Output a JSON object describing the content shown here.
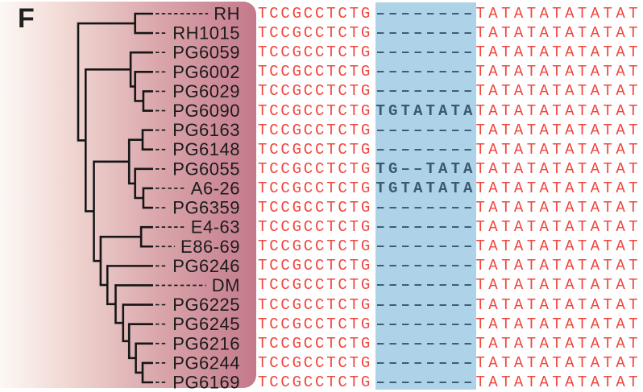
{
  "panel_label": "F",
  "colors": {
    "sequence_red": "#ef463e",
    "sequence_insert_dark": "#3a5a72",
    "highlight_blue": "#aed3e8",
    "panel_gradient_left": "#fdf8f5",
    "panel_gradient_right": "#c3798a",
    "tree_line": "#161616",
    "label_ink": "#1b1b1b"
  },
  "tree": {
    "h": 10.0,
    "c": [
      {
        "h": 2.4,
        "c": [
          "RH",
          "RH1015"
        ]
      },
      {
        "h": 9.0,
        "c": [
          {
            "h": 3.0,
            "c": [
              "PG6059",
              {
                "h": 2.4,
                "c": [
                  "PG6002",
                  {
                    "h": 1.3,
                    "c": [
                      "PG6029",
                      "PG6090"
                    ]
                  }
                ]
              }
            ]
          },
          {
            "h": 7.9,
            "c": [
              {
                "h": 3.2,
                "c": [
                  {
                    "h": 1.4,
                    "c": [
                      "PG6163",
                      "PG6148"
                    ]
                  },
                  {
                    "h": 2.4,
                    "c": [
                      "PG6055",
                      {
                        "h": 1.3,
                        "c": [
                          "A6-26",
                          "PG6359"
                        ]
                      }
                    ]
                  }
                ]
              },
              {
                "h": 7.0,
                "c": [
                  {
                    "h": 1.6,
                    "c": [
                      "E4-63",
                      "E86-69"
                    ]
                  },
                  {
                    "h": 6.1,
                    "c": [
                      "PG6246",
                      {
                        "h": 5.0,
                        "c": [
                          "DM",
                          {
                            "h": 4.0,
                            "c": [
                              "PG6225",
                              {
                                "h": 3.2,
                                "c": [
                                  "PG6245",
                                  {
                                    "h": 2.3,
                                    "c": [
                                      "PG6216",
                                      {
                                        "h": 1.4,
                                        "c": [
                                          "PG6244",
                                          "PG6169"
                                        ]
                                      }
                                    ]
                                  }
                                ]
                              }
                            ]
                          }
                        ]
                      }
                    ]
                  }
                ]
              }
            ]
          }
        ]
      }
    ]
  },
  "alignment": {
    "left_flank": "TCCGCCTCTG",
    "right_flank": "TATATATATATAT",
    "rows": [
      {
        "taxon": "RH",
        "gap": "--------"
      },
      {
        "taxon": "RH1015",
        "gap": "--------"
      },
      {
        "taxon": "PG6059",
        "gap": "--------"
      },
      {
        "taxon": "PG6002",
        "gap": "--------"
      },
      {
        "taxon": "PG6029",
        "gap": "--------"
      },
      {
        "taxon": "PG6090",
        "gap": "TGTATATA"
      },
      {
        "taxon": "PG6163",
        "gap": "--------"
      },
      {
        "taxon": "PG6148",
        "gap": "--------"
      },
      {
        "taxon": "PG6055",
        "gap": "TG--TATA"
      },
      {
        "taxon": "A6-26",
        "gap": "TGTATATA"
      },
      {
        "taxon": "PG6359",
        "gap": "--------"
      },
      {
        "taxon": "E4-63",
        "gap": "--------"
      },
      {
        "taxon": "E86-69",
        "gap": "--------"
      },
      {
        "taxon": "PG6246",
        "gap": "--------"
      },
      {
        "taxon": "DM",
        "gap": "--------"
      },
      {
        "taxon": "PG6225",
        "gap": "--------"
      },
      {
        "taxon": "PG6245",
        "gap": "--------"
      },
      {
        "taxon": "PG6216",
        "gap": "--------"
      },
      {
        "taxon": "PG6244",
        "gap": "--------"
      },
      {
        "taxon": "PG6169",
        "gap": "--------"
      }
    ]
  },
  "chart_data": {
    "type": "dendrogram_with_sequence_alignment",
    "newick": "((RH,RH1015),((PG6059,(PG6002,(PG6029,PG6090))),(((PG6163,PG6148),(PG6055,(A6-26,PG6359))),((E4-63,E86-69),(PG6246,(DM,(PG6225,(PG6245,(PG6216,(PG6244,PG6169))))))))));",
    "leaves_top_to_bottom": [
      "RH",
      "RH1015",
      "PG6059",
      "PG6002",
      "PG6029",
      "PG6090",
      "PG6163",
      "PG6148",
      "PG6055",
      "A6-26",
      "PG6359",
      "E4-63",
      "E86-69",
      "PG6246",
      "DM",
      "PG6225",
      "PG6245",
      "PG6216",
      "PG6244",
      "PG6169"
    ],
    "highlighted_region_length": 8,
    "insertion_TGTATATA": [
      "PG6090",
      "A6-26"
    ],
    "partial_insertion_TG--TATA": [
      "PG6055"
    ],
    "gap_--------": [
      "RH",
      "RH1015",
      "PG6059",
      "PG6002",
      "PG6029",
      "PG6163",
      "PG6148",
      "PG6359",
      "E4-63",
      "E86-69",
      "PG6246",
      "DM",
      "PG6225",
      "PG6245",
      "PG6216",
      "PG6244",
      "PG6169"
    ]
  }
}
